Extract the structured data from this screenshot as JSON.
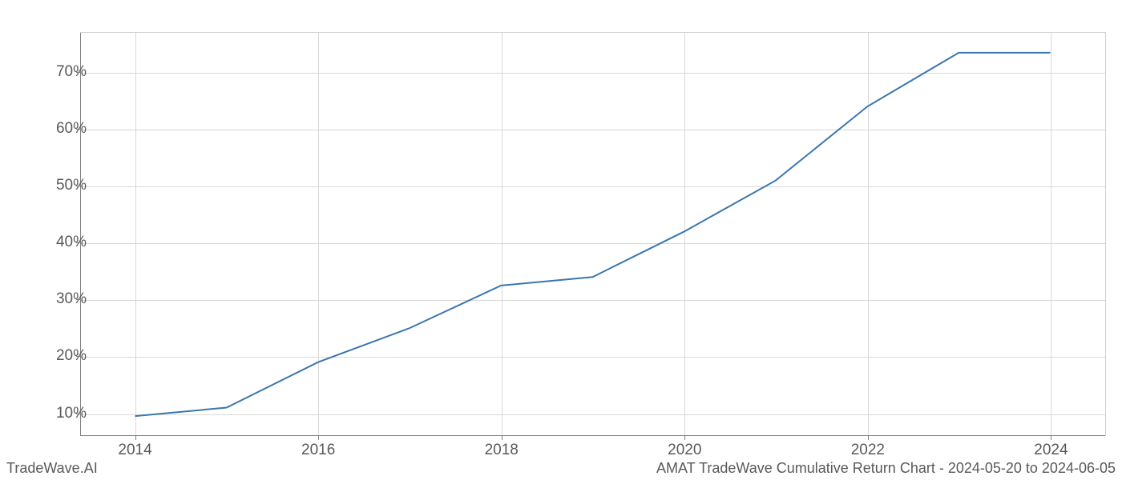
{
  "chart": {
    "type": "line",
    "x_values": [
      2014,
      2015,
      2016,
      2017,
      2018,
      2019,
      2020,
      2021,
      2022,
      2023,
      2024
    ],
    "y_values": [
      9.5,
      11,
      19,
      25,
      32.5,
      34,
      42,
      51,
      64,
      73.5,
      73.5
    ],
    "line_color": "#3a76af",
    "line_width": 2,
    "xlim": [
      2013.4,
      2024.6
    ],
    "ylim": [
      6,
      77
    ],
    "x_ticks": [
      2014,
      2016,
      2018,
      2020,
      2022,
      2024
    ],
    "x_tick_labels": [
      "2014",
      "2016",
      "2018",
      "2020",
      "2022",
      "2024"
    ],
    "y_ticks": [
      10,
      20,
      30,
      40,
      50,
      60,
      70
    ],
    "y_tick_labels": [
      "10%",
      "20%",
      "30%",
      "40%",
      "50%",
      "60%",
      "70%"
    ],
    "grid_color": "#d8d8d8",
    "axis_color": "#808080",
    "background_color": "#ffffff",
    "tick_fontsize": 19,
    "tick_color": "#595959",
    "footer_fontsize": 18
  },
  "footer": {
    "left_text": "TradeWave.AI",
    "right_text": "AMAT TradeWave Cumulative Return Chart - 2024-05-20 to 2024-06-05"
  }
}
